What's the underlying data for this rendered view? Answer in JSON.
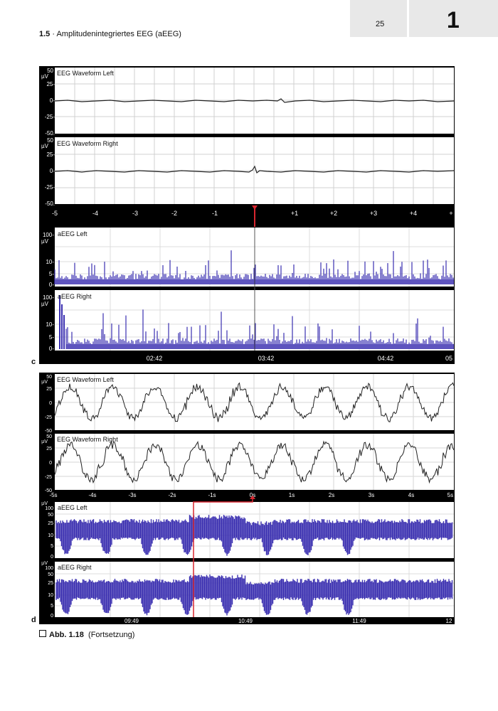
{
  "page": {
    "page_number": "25",
    "chapter_number": "1",
    "running_head_section": "1.5",
    "running_head_title": "· Amplitudenintegriertes EEG (aEEG)"
  },
  "figure": {
    "caption_label": "Abb. 1.18",
    "caption_text": "(Fortsetzung)",
    "panel_c": {
      "letter": "c",
      "channels": {
        "wave_left": "EEG Waveform Left",
        "wave_right": "EEG Waveform Right",
        "aeeg_left": "aEEG Left",
        "aeeg_right": "aEEG Right"
      },
      "wave_unit": "µV",
      "wave_ticks": [
        "50",
        "25-",
        "0-",
        "-25-",
        "-50."
      ],
      "aeeg_unit": "µV",
      "aeeg_ticks": [
        "100-",
        "10-",
        "5-",
        "0-"
      ],
      "time_ticks": [
        "-5",
        "-4",
        "-3",
        "-2",
        "-1",
        "+1",
        "+2",
        "+3",
        "+4",
        "+"
      ],
      "clock_ticks": [
        "02:42",
        "03:42",
        "04:42",
        "05"
      ]
    },
    "panel_d": {
      "letter": "d",
      "channels": {
        "wave_left": "EEG Waveform Left",
        "wave_right": "EEG Waveform Right",
        "aeeg_left": "aEEG Left",
        "aeeg_right": "aEEG Right"
      },
      "wave_unit": "µV",
      "wave_ticks": [
        "50",
        "25",
        "0",
        "-25",
        "-50"
      ],
      "aeeg_unit": "µV",
      "aeeg_ticks": [
        "100",
        "50",
        "25",
        "10",
        "5",
        "0"
      ],
      "time_ticks": [
        "-5s",
        "-4s",
        "-3s",
        "-2s",
        "-1s",
        "0s",
        "1s",
        "2s",
        "3s",
        "4s",
        "5s"
      ],
      "clock_ticks": [
        "09:49",
        "10:49",
        "11:49",
        "12"
      ]
    },
    "colors": {
      "trace": "#222222",
      "aeeg_blue": "#3a2fb0",
      "marker_red": "#d8262f",
      "grid": "#cfcfcf",
      "frame": "#000000"
    }
  }
}
